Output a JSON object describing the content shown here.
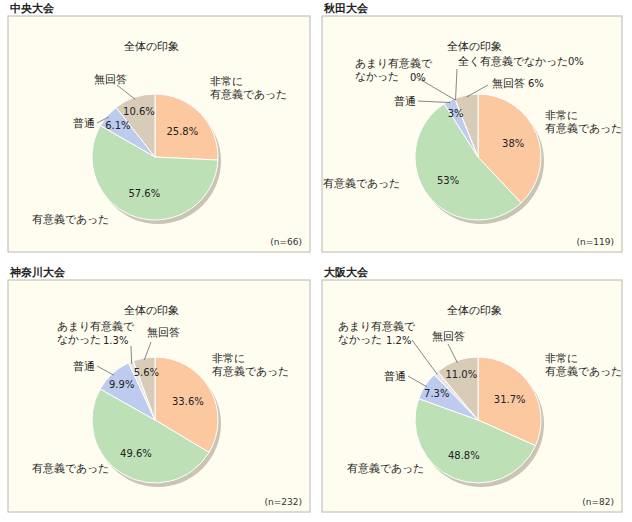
{
  "chart_data": [
    {
      "type": "pie",
      "title": "中央大会",
      "subtitle": "全体の印象",
      "annotation": "(n=66)",
      "categories": [
        "非常に\n有意義であった",
        "有意義であった",
        "普通",
        "無回答"
      ],
      "values": [
        25.8,
        57.6,
        6.1,
        10.6
      ],
      "value_labels": [
        "25.8%",
        "57.6%",
        "6.1%",
        "10.6%"
      ],
      "colors": [
        "#fcc8a0",
        "#bde0b6",
        "#bccbee",
        "#d8cbb8"
      ],
      "data_labels": true
    },
    {
      "type": "pie",
      "title": "秋田大会",
      "subtitle": "全体の印象",
      "annotation": "(n=119)",
      "categories": [
        "非常に\n有意義であった",
        "有意義であった",
        "普通",
        "あまり有意義で\nなかった",
        "全く有意義でなかった",
        "無回答"
      ],
      "values": [
        38,
        53,
        3,
        0,
        0,
        6
      ],
      "value_labels": [
        "38%",
        "53%",
        "3%",
        "0%",
        "0%",
        "6%"
      ],
      "colors": [
        "#fcc8a0",
        "#bde0b6",
        "#bccbee",
        "#e6e6e6",
        "#ffffff",
        "#d8cbb8"
      ],
      "data_labels": true
    },
    {
      "type": "pie",
      "title": "神奈川大会",
      "subtitle": "全体の印象",
      "annotation": "(n=232)",
      "categories": [
        "非常に\n有意義であった",
        "有意義であった",
        "普通",
        "あまり有意義で\nなかった",
        "無回答"
      ],
      "values": [
        33.6,
        49.6,
        9.9,
        1.3,
        5.6
      ],
      "value_labels": [
        "33.6%",
        "49.6%",
        "9.9%",
        "1.3%",
        "5.6%"
      ],
      "colors": [
        "#fcc8a0",
        "#bde0b6",
        "#bccbee",
        "#e6e6e6",
        "#d8cbb8"
      ],
      "data_labels": true
    },
    {
      "type": "pie",
      "title": "大阪大会",
      "subtitle": "全体の印象",
      "annotation": "(n=82)",
      "categories": [
        "非常に\n有意義であった",
        "有意義であった",
        "普通",
        "あまり有意義で\nなかった",
        "無回答"
      ],
      "values": [
        31.7,
        48.8,
        7.3,
        1.2,
        11.0
      ],
      "value_labels": [
        "31.7%",
        "48.8%",
        "7.3%",
        "1.2%",
        "11.0%"
      ],
      "colors": [
        "#fcc8a0",
        "#bde0b6",
        "#bccbee",
        "#e6e6e6",
        "#d8cbb8"
      ],
      "data_labels": true
    }
  ]
}
